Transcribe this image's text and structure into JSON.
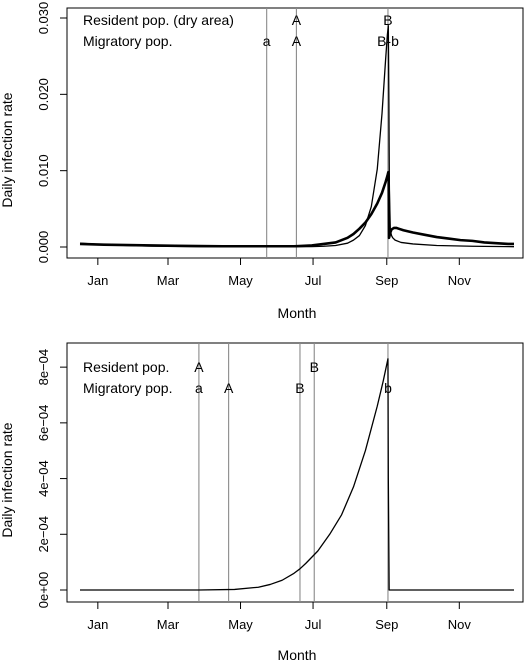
{
  "chart_data": [
    {
      "type": "line",
      "xlabel": "Month",
      "ylabel": "Daily infection rate",
      "xlim": [
        0,
        365
      ],
      "ylim": [
        0,
        0.03
      ],
      "x_ticks": [
        {
          "day": 15,
          "label": "Jan"
        },
        {
          "day": 74,
          "label": "Mar"
        },
        {
          "day": 135,
          "label": "May"
        },
        {
          "day": 196,
          "label": "Jul"
        },
        {
          "day": 258,
          "label": "Sep"
        },
        {
          "day": 319,
          "label": "Nov"
        }
      ],
      "y_ticks": [
        {
          "value": 0.0,
          "label": "0.000"
        },
        {
          "value": 0.01,
          "label": "0.010"
        },
        {
          "value": 0.02,
          "label": "0.020"
        },
        {
          "value": 0.03,
          "label": "0.030"
        }
      ],
      "row_labels": [
        "Resident pop. (dry area)",
        "Migratory pop."
      ],
      "markers": [
        {
          "day": 157,
          "resident": "",
          "migratory": "a"
        },
        {
          "day": 182,
          "resident": "A",
          "migratory": "A"
        },
        {
          "day": 259,
          "resident": "B",
          "migratory": "B-b"
        }
      ],
      "series": [
        {
          "style": "thin",
          "x": [
            0,
            20,
            40,
            60,
            80,
            100,
            120,
            140,
            160,
            180,
            195,
            205,
            215,
            225,
            230,
            235,
            240,
            245,
            250,
            254,
            257,
            258.5,
            259.3,
            259.8,
            260.2,
            261,
            262,
            263,
            265,
            270,
            280,
            300,
            330,
            360,
            365
          ],
          "y": [
            0.0005,
            0.0003,
            0.0002,
            0.00012,
            8e-05,
            6e-05,
            5e-05,
            4e-05,
            4e-05,
            4e-05,
            5e-05,
            0.0001,
            0.0002,
            0.0005,
            0.0009,
            0.0015,
            0.0028,
            0.0053,
            0.0102,
            0.0175,
            0.0245,
            0.0278,
            0.029,
            0.0188,
            0.0075,
            0.0022,
            0.0015,
            0.0012,
            0.0009,
            0.0006,
            0.0004,
            0.0002,
            0.0001,
            5e-05,
            4e-05
          ]
        },
        {
          "style": "thick",
          "x": [
            0,
            20,
            40,
            60,
            80,
            100,
            120,
            140,
            160,
            180,
            195,
            205,
            215,
            225,
            230,
            235,
            240,
            245,
            250,
            254,
            257,
            258.5,
            259.3,
            259.6,
            259.9,
            261,
            262,
            264,
            266,
            268,
            272,
            280,
            290,
            300,
            310,
            320,
            330,
            340,
            350,
            360,
            365
          ],
          "y": [
            0.0004,
            0.0003,
            0.00025,
            0.0002,
            0.00015,
            0.00012,
            0.0001,
            0.0001,
            0.0001,
            0.0001,
            0.0002,
            0.0004,
            0.0006,
            0.0012,
            0.0017,
            0.0024,
            0.0032,
            0.0043,
            0.0057,
            0.0071,
            0.0085,
            0.0093,
            0.0098,
            0.0088,
            0.0012,
            0.0019,
            0.0023,
            0.0025,
            0.0025,
            0.0024,
            0.0022,
            0.0019,
            0.0016,
            0.0013,
            0.0011,
            0.0009,
            0.0008,
            0.0006,
            0.0005,
            0.0004,
            0.0004
          ]
        }
      ]
    },
    {
      "type": "line",
      "xlabel": "Month",
      "ylabel": "Daily infection rate",
      "xlim": [
        0,
        365
      ],
      "ylim": [
        0,
        0.00084
      ],
      "x_ticks": [
        {
          "day": 15,
          "label": "Jan"
        },
        {
          "day": 74,
          "label": "Mar"
        },
        {
          "day": 135,
          "label": "May"
        },
        {
          "day": 196,
          "label": "Jul"
        },
        {
          "day": 258,
          "label": "Sep"
        },
        {
          "day": 319,
          "label": "Nov"
        }
      ],
      "y_ticks": [
        {
          "value": 0.0,
          "label": "0e+00"
        },
        {
          "value": 0.0002,
          "label": "2e−04"
        },
        {
          "value": 0.0004,
          "label": "4e−04"
        },
        {
          "value": 0.0006,
          "label": "6e−04"
        },
        {
          "value": 0.0008,
          "label": "8e−04"
        }
      ],
      "row_labels": [
        "Resident pop.",
        "Migratory pop."
      ],
      "markers": [
        {
          "day": 100,
          "resident": "A",
          "migratory": "a"
        },
        {
          "day": 125,
          "resident": "",
          "migratory": "A"
        },
        {
          "day": 185,
          "resident": "",
          "migratory": "B"
        },
        {
          "day": 197,
          "resident": "B",
          "migratory": ""
        },
        {
          "day": 259,
          "resident": "",
          "migratory": "b"
        }
      ],
      "series": [
        {
          "style": "thin",
          "x": [
            0,
            50,
            100,
            130,
            150,
            160,
            170,
            180,
            185,
            190,
            200,
            210,
            220,
            230,
            240,
            250,
            255,
            259,
            259.3,
            260,
            300,
            365
          ],
          "y": [
            0,
            0,
            0,
            2e-06,
            1e-05,
            2e-05,
            3.5e-05,
            6e-05,
            7.6e-05,
            9.6e-05,
            0.00014,
            0.0002,
            0.00027,
            0.00037,
            0.0005,
            0.00066,
            0.00075,
            0.00083,
            0.0004,
            0,
            0,
            0
          ]
        }
      ]
    }
  ]
}
